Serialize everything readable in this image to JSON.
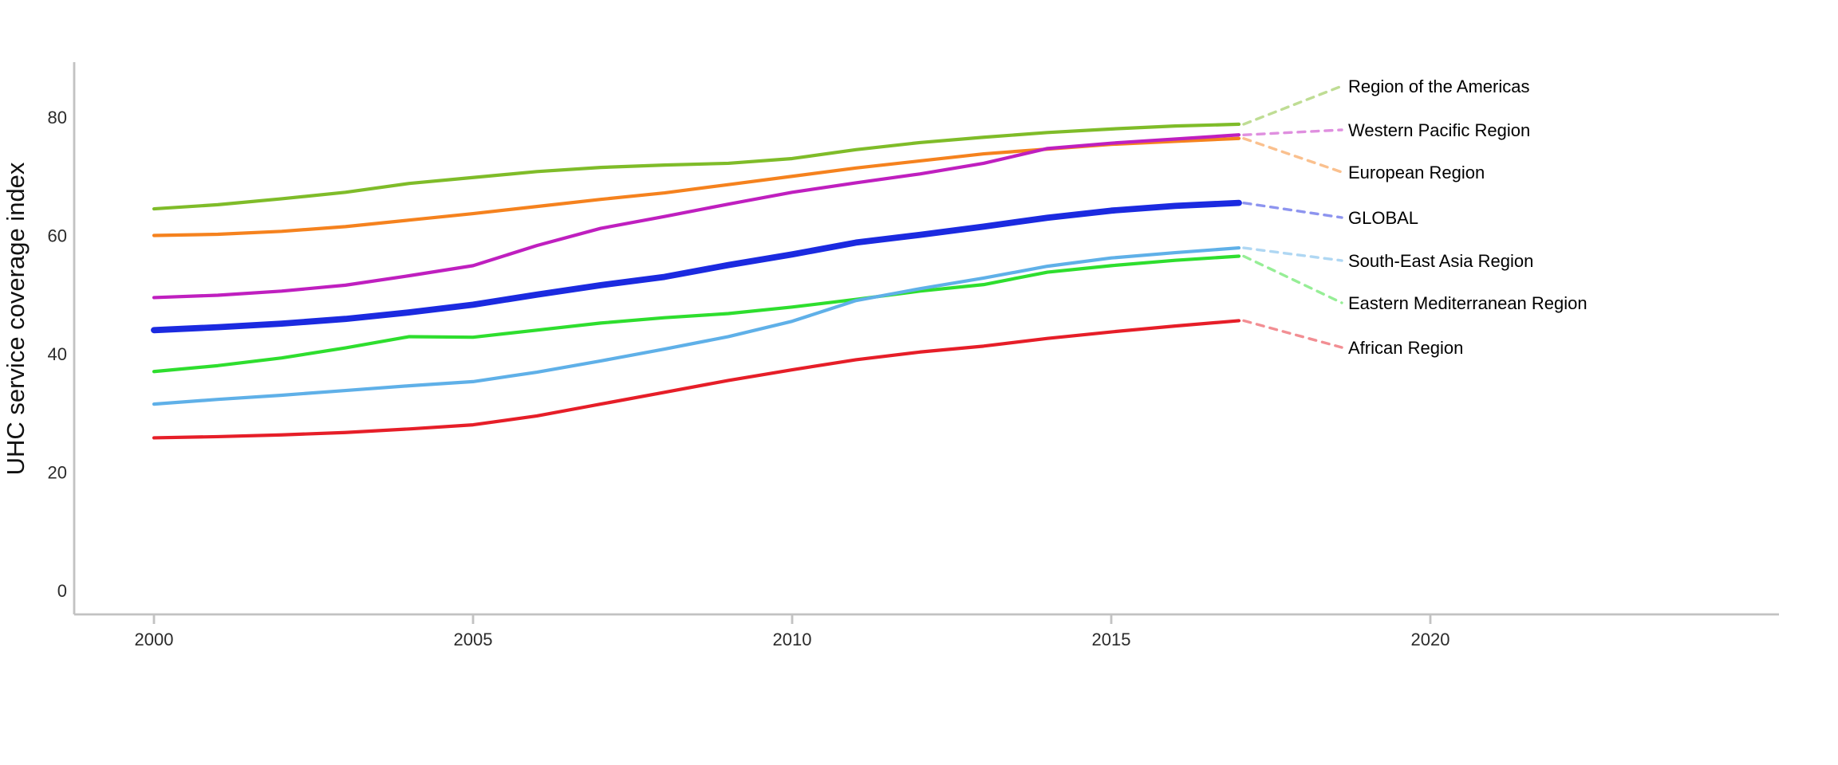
{
  "page": {
    "background": "#ffffff",
    "description": "Line chart of UHC service coverage index by WHO region, 2000-2017, with dashed leader lines to direct series labels on the right"
  },
  "y_axis": {
    "title": "UHC service coverage index",
    "ticks": [
      0,
      20,
      40,
      60,
      80
    ]
  },
  "x_axis": {
    "ticks": [
      2000,
      2005,
      2010,
      2015,
      2020
    ]
  },
  "chart_data": {
    "type": "line",
    "title": "",
    "xlabel": "",
    "ylabel": "UHC service coverage index",
    "grid": false,
    "legend_position": "right-direct-labels-with-dashed-leaders",
    "xlim": [
      1998.75,
      2025.5
    ],
    "ylim": [
      -4,
      84
    ],
    "x": [
      2000,
      2001,
      2002,
      2003,
      2004,
      2005,
      2006,
      2007,
      2008,
      2009,
      2010,
      2011,
      2012,
      2013,
      2014,
      2015,
      2016,
      2017
    ],
    "series": [
      {
        "name": "Region of the Americas",
        "color": "#7fbc29",
        "emphasis": false,
        "values": [
          64.5,
          65.2,
          66.2,
          67.3,
          68.8,
          69.8,
          70.8,
          71.5,
          71.9,
          72.2,
          73.0,
          74.5,
          75.7,
          76.6,
          77.4,
          78.0,
          78.5,
          78.8
        ]
      },
      {
        "name": "Western Pacific Region",
        "color": "#bf1fbf",
        "emphasis": false,
        "values": [
          49.5,
          49.9,
          50.6,
          51.6,
          53.2,
          54.9,
          58.3,
          61.2,
          63.2,
          65.3,
          67.3,
          68.9,
          70.4,
          72.2,
          74.7,
          75.6,
          76.3,
          77.0
        ]
      },
      {
        "name": "European Region",
        "color": "#f5821e",
        "emphasis": false,
        "values": [
          60.0,
          60.2,
          60.7,
          61.5,
          62.6,
          63.7,
          64.9,
          66.1,
          67.2,
          68.6,
          70.0,
          71.4,
          72.6,
          73.8,
          74.6,
          75.4,
          75.9,
          76.4
        ]
      },
      {
        "name": "GLOBAL",
        "color": "#1b2ae0",
        "emphasis": true,
        "values": [
          44.0,
          44.5,
          45.1,
          45.9,
          47.0,
          48.3,
          50.0,
          51.6,
          53.0,
          55.0,
          56.8,
          58.8,
          60.1,
          61.5,
          63.0,
          64.2,
          65.0,
          65.5
        ]
      },
      {
        "name": "South-East Asia Region",
        "color": "#5fb0e8",
        "emphasis": false,
        "values": [
          31.5,
          32.3,
          33.0,
          33.8,
          34.6,
          35.3,
          36.9,
          38.8,
          40.8,
          42.9,
          45.5,
          49.0,
          51.0,
          52.8,
          54.8,
          56.2,
          57.1,
          57.9
        ]
      },
      {
        "name": "Eastern Mediterranean Region",
        "color": "#2ede2e",
        "emphasis": false,
        "values": [
          37.0,
          38.0,
          39.3,
          41.0,
          42.9,
          42.8,
          44.0,
          45.2,
          46.1,
          46.8,
          47.9,
          49.2,
          50.6,
          51.7,
          53.8,
          54.9,
          55.8,
          56.5
        ]
      },
      {
        "name": "African Region",
        "color": "#e61e28",
        "emphasis": false,
        "values": [
          25.8,
          26.0,
          26.3,
          26.7,
          27.3,
          28.0,
          29.5,
          31.5,
          33.5,
          35.5,
          37.3,
          39.0,
          40.3,
          41.3,
          42.6,
          43.7,
          44.7,
          45.6
        ]
      }
    ]
  }
}
